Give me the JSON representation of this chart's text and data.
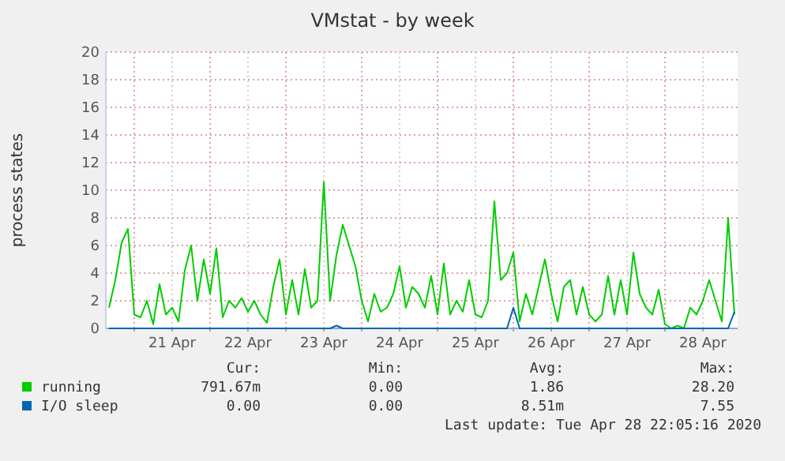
{
  "chart_data": {
    "type": "line",
    "title": "VMstat - by week",
    "ylabel": "process states",
    "x": [
      "2020-04-20T16:00",
      "2020-04-20T18:00",
      "2020-04-20T20:00",
      "2020-04-20T22:00",
      "2020-04-21T00:00",
      "2020-04-21T02:00",
      "2020-04-21T04:00",
      "2020-04-21T06:00",
      "2020-04-21T08:00",
      "2020-04-21T10:00",
      "2020-04-21T12:00",
      "2020-04-21T14:00",
      "2020-04-21T16:00",
      "2020-04-21T18:00",
      "2020-04-21T20:00",
      "2020-04-21T22:00",
      "2020-04-22T00:00",
      "2020-04-22T02:00",
      "2020-04-22T04:00",
      "2020-04-22T06:00",
      "2020-04-22T08:00",
      "2020-04-22T10:00",
      "2020-04-22T12:00",
      "2020-04-22T14:00",
      "2020-04-22T16:00",
      "2020-04-22T18:00",
      "2020-04-22T20:00",
      "2020-04-22T22:00",
      "2020-04-23T00:00",
      "2020-04-23T02:00",
      "2020-04-23T04:00",
      "2020-04-23T06:00",
      "2020-04-23T08:00",
      "2020-04-23T10:00",
      "2020-04-23T12:00",
      "2020-04-23T14:00",
      "2020-04-23T16:00",
      "2020-04-23T18:00",
      "2020-04-23T20:00",
      "2020-04-23T22:00",
      "2020-04-24T00:00",
      "2020-04-24T02:00",
      "2020-04-24T04:00",
      "2020-04-24T06:00",
      "2020-04-24T08:00",
      "2020-04-24T10:00",
      "2020-04-24T12:00",
      "2020-04-24T14:00",
      "2020-04-24T16:00",
      "2020-04-24T18:00",
      "2020-04-24T20:00",
      "2020-04-24T22:00",
      "2020-04-25T00:00",
      "2020-04-25T02:00",
      "2020-04-25T04:00",
      "2020-04-25T06:00",
      "2020-04-25T08:00",
      "2020-04-25T10:00",
      "2020-04-25T12:00",
      "2020-04-25T14:00",
      "2020-04-25T16:00",
      "2020-04-25T18:00",
      "2020-04-25T20:00",
      "2020-04-25T22:00",
      "2020-04-26T00:00",
      "2020-04-26T02:00",
      "2020-04-26T04:00",
      "2020-04-26T06:00",
      "2020-04-26T08:00",
      "2020-04-26T10:00",
      "2020-04-26T12:00",
      "2020-04-26T14:00",
      "2020-04-26T16:00",
      "2020-04-26T18:00",
      "2020-04-26T20:00",
      "2020-04-26T22:00",
      "2020-04-27T00:00",
      "2020-04-27T02:00",
      "2020-04-27T04:00",
      "2020-04-27T06:00",
      "2020-04-27T08:00",
      "2020-04-27T10:00",
      "2020-04-27T12:00",
      "2020-04-27T14:00",
      "2020-04-27T16:00",
      "2020-04-27T18:00",
      "2020-04-27T20:00",
      "2020-04-27T22:00",
      "2020-04-28T00:00",
      "2020-04-28T02:00",
      "2020-04-28T04:00",
      "2020-04-28T06:00",
      "2020-04-28T08:00",
      "2020-04-28T10:00",
      "2020-04-28T12:00",
      "2020-04-28T14:00",
      "2020-04-28T16:00",
      "2020-04-28T18:00",
      "2020-04-28T20:00",
      "2020-04-28T22:00"
    ],
    "series": [
      {
        "name": "running",
        "color": "#00cc00",
        "values": [
          1.5,
          3.5,
          6.2,
          7.2,
          1.0,
          0.8,
          2.0,
          0.3,
          3.2,
          1.0,
          1.5,
          0.5,
          4.2,
          6.0,
          2.0,
          5.0,
          2.5,
          5.8,
          0.8,
          2.0,
          1.5,
          2.2,
          1.2,
          2.0,
          1.0,
          0.4,
          3.0,
          5.0,
          1.0,
          3.5,
          1.0,
          4.3,
          1.5,
          2.0,
          10.6,
          2.0,
          5.3,
          7.5,
          6.0,
          4.5,
          2.0,
          0.5,
          2.5,
          1.2,
          1.5,
          2.5,
          4.5,
          1.5,
          3.0,
          2.5,
          1.5,
          3.8,
          1.0,
          4.7,
          1.0,
          2.0,
          1.2,
          3.5,
          1.0,
          0.8,
          2.0,
          9.2,
          3.5,
          4.0,
          5.5,
          0.5,
          2.5,
          1.0,
          3.0,
          5.0,
          2.5,
          0.5,
          3.0,
          3.5,
          1.0,
          3.0,
          1.0,
          0.5,
          1.0,
          3.8,
          1.0,
          3.5,
          1.0,
          5.5,
          2.5,
          1.5,
          1.0,
          2.8,
          0.3,
          0,
          0.2,
          0,
          1.5,
          1.0,
          2.0,
          3.5,
          2.0,
          0.5,
          8.0,
          1.0
        ]
      },
      {
        "name": "I/O sleep",
        "color": "#0066b3",
        "values": [
          0,
          0,
          0,
          0,
          0,
          0,
          0,
          0,
          0,
          0,
          0,
          0,
          0,
          0,
          0,
          0,
          0,
          0,
          0,
          0,
          0,
          0,
          0,
          0,
          0,
          0,
          0,
          0,
          0,
          0,
          0,
          0,
          0,
          0,
          0,
          0,
          0.2,
          0,
          0,
          0,
          0,
          0,
          0,
          0,
          0,
          0,
          0,
          0,
          0,
          0,
          0,
          0,
          0,
          0,
          0,
          0,
          0,
          0,
          0,
          0,
          0,
          0,
          0,
          0,
          1.5,
          0,
          0,
          0,
          0,
          0,
          0,
          0,
          0,
          0,
          0,
          0,
          0,
          0,
          0,
          0,
          0,
          0,
          0,
          0,
          0,
          0,
          0,
          0,
          0,
          0,
          0,
          0,
          0,
          0,
          0,
          0,
          0,
          0,
          0,
          1.2
        ]
      }
    ],
    "xlim": [
      "2020-04-20T15:00",
      "2020-04-28T23:00"
    ],
    "xticks": [
      {
        "value": "2020-04-21T00:00",
        "label": null
      },
      {
        "value": "2020-04-21T12:00",
        "label": "21 Apr"
      },
      {
        "value": "2020-04-22T00:00",
        "label": null
      },
      {
        "value": "2020-04-22T12:00",
        "label": "22 Apr"
      },
      {
        "value": "2020-04-23T00:00",
        "label": null
      },
      {
        "value": "2020-04-23T12:00",
        "label": "23 Apr"
      },
      {
        "value": "2020-04-24T00:00",
        "label": null
      },
      {
        "value": "2020-04-24T12:00",
        "label": "24 Apr"
      },
      {
        "value": "2020-04-25T00:00",
        "label": null
      },
      {
        "value": "2020-04-25T12:00",
        "label": "25 Apr"
      },
      {
        "value": "2020-04-26T00:00",
        "label": null
      },
      {
        "value": "2020-04-26T12:00",
        "label": "26 Apr"
      },
      {
        "value": "2020-04-27T00:00",
        "label": null
      },
      {
        "value": "2020-04-27T12:00",
        "label": "27 Apr"
      },
      {
        "value": "2020-04-28T00:00",
        "label": null
      },
      {
        "value": "2020-04-28T12:00",
        "label": "28 Apr"
      }
    ],
    "ylim": [
      0,
      20
    ],
    "yticks": [
      0,
      2,
      4,
      6,
      8,
      10,
      12,
      14,
      16,
      18,
      20
    ],
    "grid": true,
    "legend": "bottom",
    "annotations": [
      "Cur:",
      "Min:",
      "Avg:",
      "Max:",
      "791.67m",
      "0.00",
      "1.86",
      "28.20",
      "0.00",
      "0.00",
      "8.51m",
      "7.55",
      "Last update: Tue Apr 28 22:05:16 2020"
    ]
  }
}
